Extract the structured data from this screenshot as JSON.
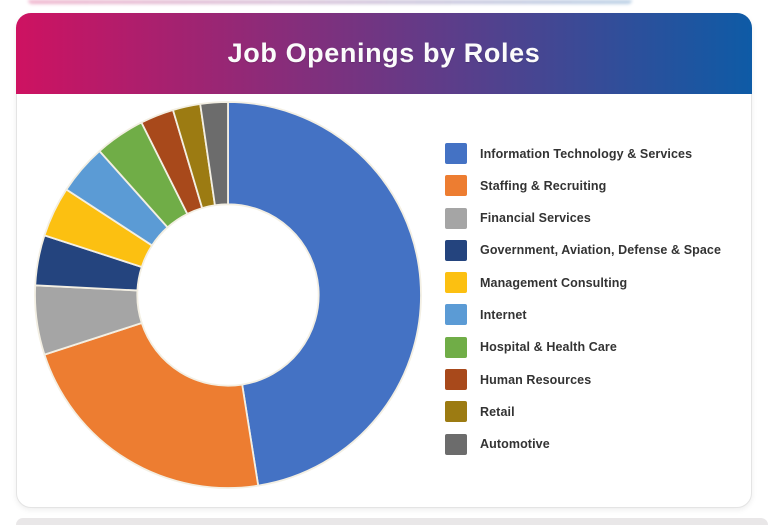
{
  "header": {
    "title": "Job Openings by Roles",
    "gradient_left": "#CE1261",
    "gradient_right": "#0E5BA6",
    "title_color": "#FBFBFB"
  },
  "chart_data": {
    "type": "pie",
    "subtype": "donut",
    "title": "Job Openings by Roles",
    "labels": [
      "Information Technology & Services",
      "Staffing & Recruiting",
      "Financial Services",
      "Government, Aviation, Defense & Space",
      "Management Consulting",
      "Internet",
      "Hospital & Health Care",
      "Human Resources",
      "Retail",
      "Automotive"
    ],
    "values_pct": [
      47.5,
      22.5,
      5.8,
      4.2,
      4.2,
      4.2,
      4.2,
      2.8,
      2.3,
      2.3
    ],
    "colors": [
      "#4472C4",
      "#ED7D31",
      "#A5A5A5",
      "#24447E",
      "#FCC011",
      "#5B9BD5",
      "#70AD47",
      "#A8491B",
      "#9C7B12",
      "#6C6C6C"
    ],
    "start_angle_deg": 0,
    "direction": "clockwise",
    "inner_radius_ratio": 0.47,
    "slice_border_color": "#F3EFE3",
    "legend_position": "right",
    "data_labels": "none",
    "legend_text_color": "#333333"
  }
}
